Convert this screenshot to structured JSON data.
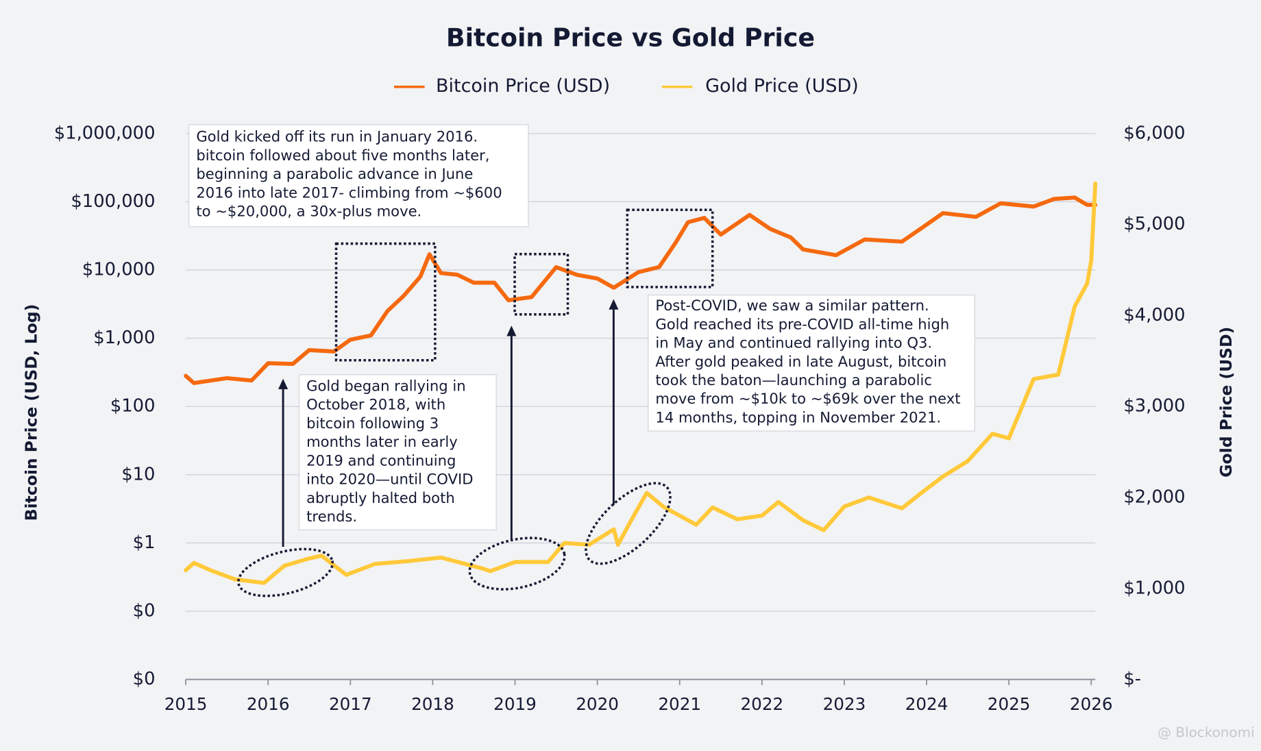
{
  "chart_data": {
    "type": "line",
    "title": "Bitcoin Price vs Gold Price",
    "y_label": "Bitcoin Price (USD, Log)",
    "y2_label": "Gold Price (USD)",
    "log_y": true,
    "grid": true,
    "legend": "top",
    "xlim": [
      2015,
      2026.05
    ],
    "xticks": [
      2015,
      2016,
      2017,
      2018,
      2019,
      2020,
      2021,
      2022,
      2023,
      2024,
      2025,
      2026
    ],
    "ylim": [
      0.01,
      1000000
    ],
    "yticks": [
      {
        "value": 0.01,
        "label": "$0"
      },
      {
        "value": 0.1,
        "label": "$0"
      },
      {
        "value": 1,
        "label": "$1"
      },
      {
        "value": 10,
        "label": "$10"
      },
      {
        "value": 100,
        "label": "$100"
      },
      {
        "value": 1000,
        "label": "$1,000"
      },
      {
        "value": 10000,
        "label": "$10,000"
      },
      {
        "value": 100000,
        "label": "$100,000"
      },
      {
        "value": 1000000,
        "label": "$1,000,000"
      }
    ],
    "y2lim": [
      0,
      6000
    ],
    "y2ticks": [
      {
        "value": 0,
        "label": "$-"
      },
      {
        "value": 1000,
        "label": "$1,000"
      },
      {
        "value": 2000,
        "label": "$2,000"
      },
      {
        "value": 3000,
        "label": "$3,000"
      },
      {
        "value": 4000,
        "label": "$4,000"
      },
      {
        "value": 5000,
        "label": "$5,000"
      },
      {
        "value": 6000,
        "label": "$6,000"
      }
    ],
    "series": [
      {
        "name": "Bitcoin Price (USD)",
        "color": "#f5690f",
        "x": [
          2015.0,
          2015.1,
          2015.5,
          2015.8,
          2016.0,
          2016.3,
          2016.5,
          2016.8,
          2017.0,
          2017.25,
          2017.45,
          2017.65,
          2017.85,
          2017.96,
          2018.1,
          2018.3,
          2018.5,
          2018.75,
          2018.92,
          2019.2,
          2019.5,
          2019.75,
          2020.0,
          2020.2,
          2020.5,
          2020.75,
          2020.95,
          2021.1,
          2021.3,
          2021.5,
          2021.85,
          2022.1,
          2022.35,
          2022.5,
          2022.9,
          2023.25,
          2023.7,
          2023.95,
          2024.2,
          2024.6,
          2024.9,
          2025.3,
          2025.55,
          2025.8,
          2025.95,
          2026.05
        ],
        "values": [
          280,
          220,
          260,
          240,
          430,
          420,
          670,
          640,
          950,
          1100,
          2500,
          4200,
          8000,
          17000,
          9000,
          8500,
          6500,
          6500,
          3600,
          4000,
          11000,
          8500,
          7500,
          5500,
          9300,
          11000,
          25000,
          50000,
          58000,
          33000,
          64000,
          40000,
          30000,
          20000,
          16500,
          28000,
          26000,
          42000,
          68000,
          60000,
          95000,
          85000,
          110000,
          115000,
          90000,
          90000
        ]
      },
      {
        "name": "Gold Price (USD)",
        "color": "#ffc93a",
        "axis": "y2",
        "x": [
          2015.0,
          2015.1,
          2015.3,
          2015.6,
          2015.95,
          2016.2,
          2016.5,
          2016.65,
          2016.95,
          2017.3,
          2017.7,
          2018.1,
          2018.6,
          2018.7,
          2019.0,
          2019.4,
          2019.6,
          2019.9,
          2020.2,
          2020.25,
          2020.4,
          2020.6,
          2020.8,
          2021.2,
          2021.4,
          2021.7,
          2022.0,
          2022.2,
          2022.5,
          2022.75,
          2023.0,
          2023.3,
          2023.7,
          2023.95,
          2024.2,
          2024.5,
          2024.8,
          2025.0,
          2025.3,
          2025.6,
          2025.8,
          2025.95,
          2026.0,
          2026.05
        ],
        "values": [
          1200,
          1280,
          1200,
          1100,
          1060,
          1250,
          1330,
          1360,
          1150,
          1270,
          1300,
          1340,
          1220,
          1190,
          1290,
          1290,
          1500,
          1480,
          1650,
          1480,
          1730,
          2050,
          1900,
          1700,
          1890,
          1760,
          1800,
          1950,
          1750,
          1640,
          1900,
          2000,
          1880,
          2060,
          2230,
          2400,
          2700,
          2650,
          3300,
          3350,
          4100,
          4350,
          4600,
          5450
        ]
      }
    ],
    "annotations": [
      {
        "lines": [
          "Gold kicked off its run in January 2016.",
          "bitcoin followed about five months later,",
          "beginning a parabolic advance in June",
          "2016 into late 2017- climbing from ~$600",
          "to ~$20,000, a 30x-plus move."
        ]
      },
      {
        "lines": [
          "Gold began rallying in",
          "October 2018, with",
          "bitcoin following  3",
          "months later in early",
          "2019 and continuing",
          "into 2020—until COVID",
          "abruptly halted both",
          "trends."
        ]
      },
      {
        "lines": [
          "Post-COVID, we saw a similar pattern.",
          "Gold reached its pre-COVID all-time high",
          "in May and continued rallying into Q3.",
          "After gold peaked in late August, bitcoin",
          "took the baton—launching a parabolic",
          "move from ~$10k to ~$69k over the next",
          "14 months, topping in November 2021."
        ]
      }
    ],
    "watermark": "@ Blockonomi"
  }
}
